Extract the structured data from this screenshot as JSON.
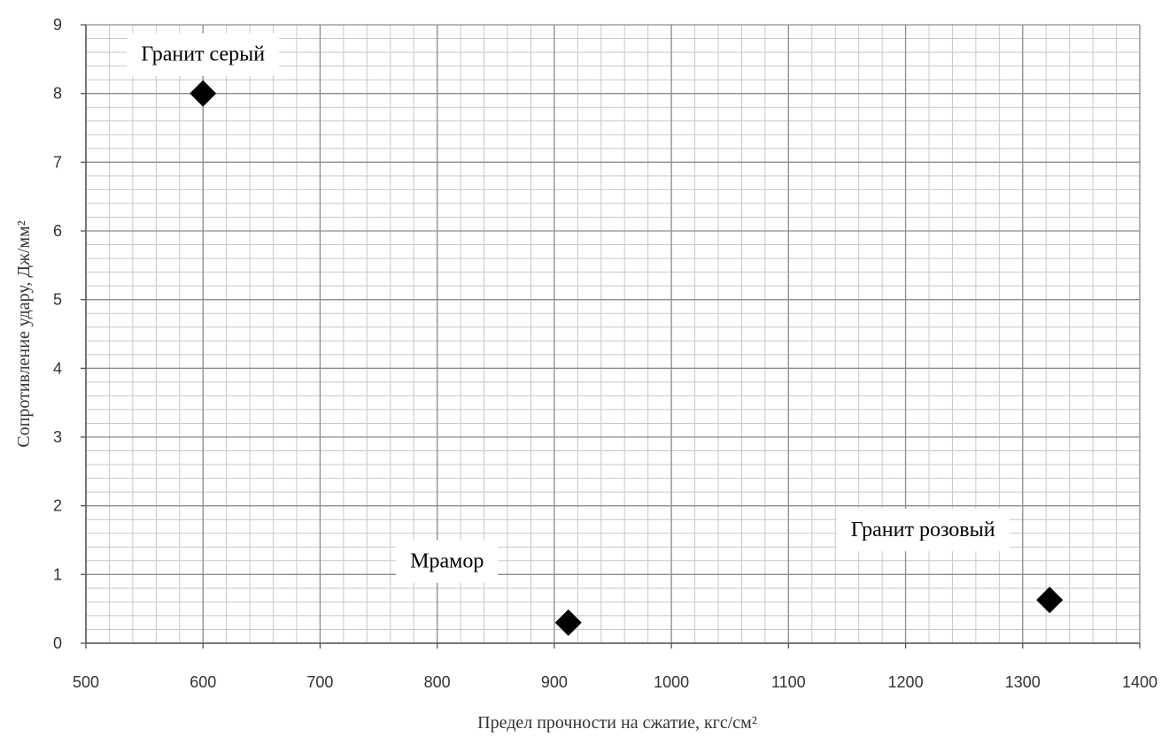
{
  "chart_data": {
    "type": "scatter",
    "xlabel": "Предел прочности на сжатие, кгс/см²",
    "ylabel": "Сопротивление удару, Дж/мм²",
    "xlim": [
      500,
      1400
    ],
    "ylim": [
      0,
      9
    ],
    "x_ticks": [
      "500",
      "600",
      "700",
      "800",
      "900",
      "1000",
      "1100",
      "1200",
      "1300",
      "1400"
    ],
    "y_ticks": [
      "0",
      "1",
      "2",
      "3",
      "4",
      "5",
      "6",
      "7",
      "8",
      "9"
    ],
    "grid": "major-and-minor",
    "marker": "diamond",
    "marker_color": "#000000",
    "points": [
      {
        "label": "Гранит серый",
        "x": 600,
        "y": 8.0
      },
      {
        "label": "Мрамор",
        "x": 912,
        "y": 0.3
      },
      {
        "label": "Гранит розовый",
        "x": 1323,
        "y": 0.63
      }
    ]
  }
}
